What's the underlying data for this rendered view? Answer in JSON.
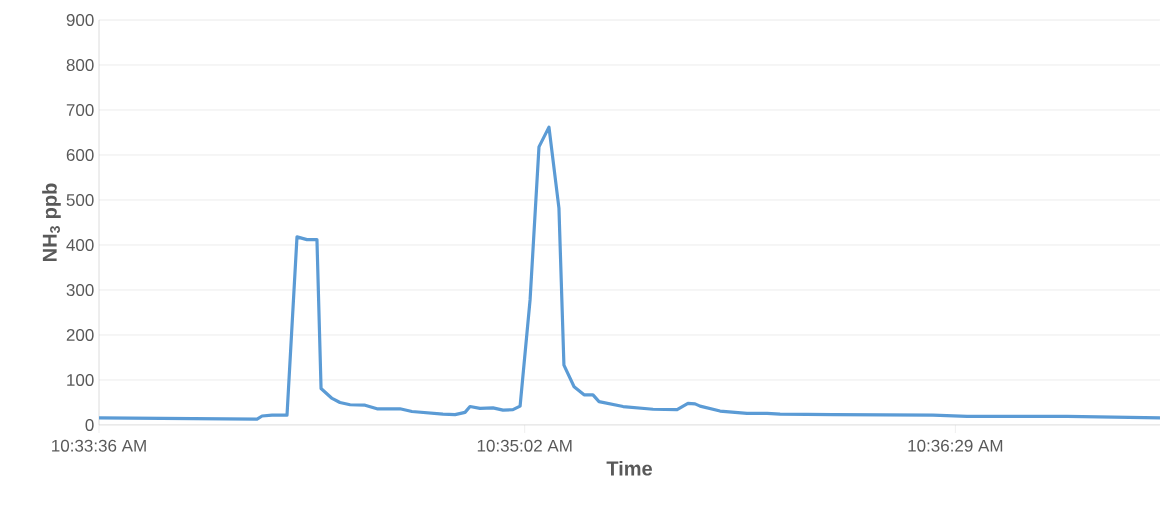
{
  "chart_data": {
    "type": "line",
    "xlabel": "Time",
    "ylabel": "NH$_{3}$ ppb",
    "x": [
      10.56,
      10.56887,
      10.56915,
      10.56971,
      10.57055,
      10.57111,
      10.57167,
      10.57223,
      10.57246,
      10.57308,
      10.57352,
      10.57409,
      10.57493,
      10.5756,
      10.57622,
      10.57689,
      10.57756,
      10.5793,
      10.57998,
      10.58054,
      10.58082,
      10.58138,
      10.58211,
      10.58267,
      10.58323,
      10.58363,
      10.58419,
      10.58469,
      10.58525,
      10.58581,
      10.58609,
      10.58666,
      10.58722,
      10.58772,
      10.58806,
      10.58941,
      10.59109,
      10.59244,
      10.59305,
      10.59345,
      10.59373,
      10.59485,
      10.59636,
      10.59749,
      10.59822,
      10.60119,
      10.6068,
      10.60871,
      10.61432,
      10.61954
    ],
    "series": [
      {
        "color": "#5b9bd5",
        "values": [
          16,
          13,
          20,
          22,
          22,
          418,
          412,
          412,
          81,
          59,
          50,
          45,
          44,
          36,
          36,
          36,
          30,
          24,
          23,
          28,
          41,
          37,
          38,
          33,
          34,
          42,
          278,
          618,
          662,
          482,
          133,
          85,
          67,
          67,
          52,
          41,
          35,
          34,
          48,
          47,
          42,
          31,
          26,
          26,
          24,
          23,
          22,
          19,
          19,
          16
        ]
      }
    ],
    "xlim": [
      10.56,
      10.61954
    ],
    "ylim": [
      0,
      900
    ],
    "xticks": [
      {
        "value": 10.56,
        "label": "10:33:36 AM"
      },
      {
        "value": 10.583889,
        "label": "10:35:02 AM"
      },
      {
        "value": 10.608056,
        "label": "10:36:29 AM"
      }
    ],
    "yticks": [
      0,
      100,
      200,
      300,
      400,
      500,
      600,
      700,
      800,
      900
    ],
    "grid": "y",
    "marker": "none",
    "line_style": "solid"
  }
}
